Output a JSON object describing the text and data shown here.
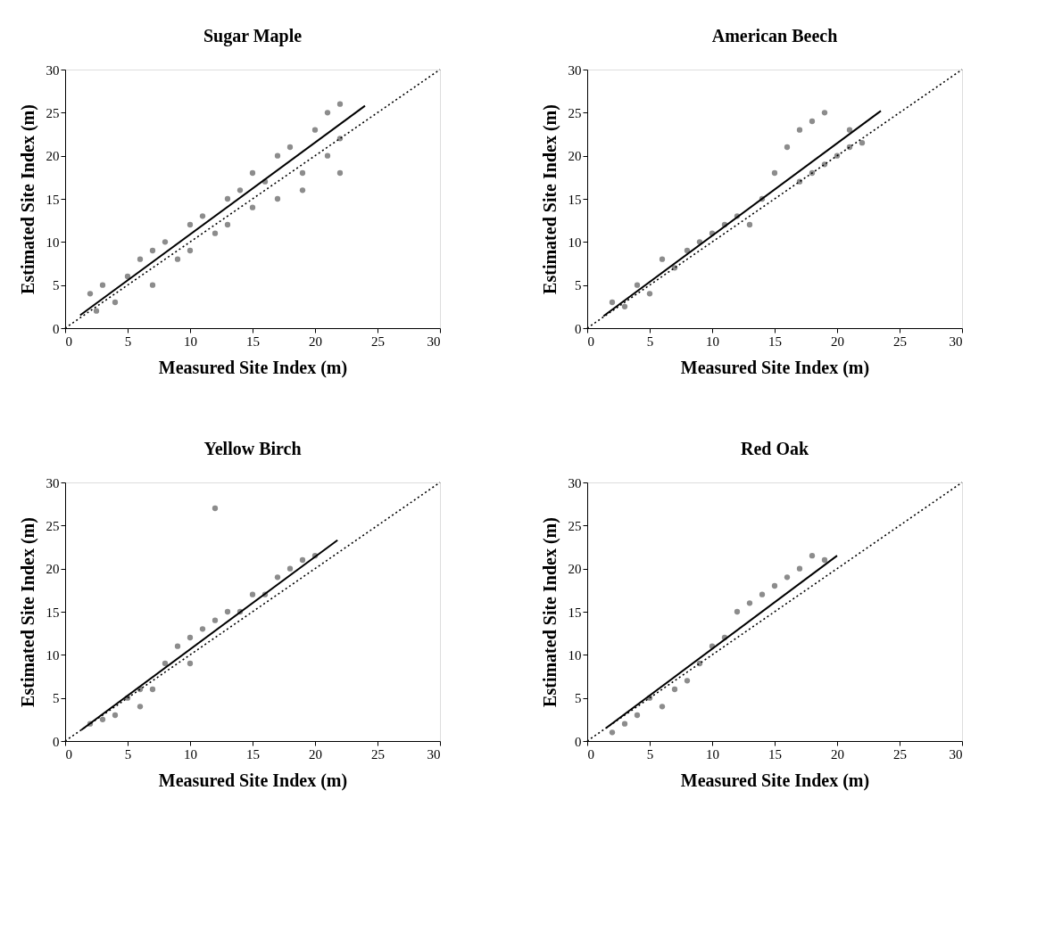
{
  "chart_data": [
    {
      "type": "scatter",
      "title": "Sugar Maple",
      "xlabel": "Measured Site Index (m)",
      "ylabel": "Estimated Site Index (m)",
      "xlim": [
        0,
        30
      ],
      "ylim": [
        0,
        30
      ],
      "xticks": [
        0,
        5,
        10,
        15,
        20,
        25,
        30
      ],
      "yticks": [
        0,
        5,
        10,
        15,
        20,
        25,
        30
      ],
      "grid": false,
      "series": [
        {
          "color": "#8c8c8c",
          "marker": "circle",
          "x": [
            2,
            2.5,
            3,
            4,
            5,
            6,
            7,
            7,
            8,
            9,
            10,
            10,
            11,
            12,
            13,
            13,
            14,
            15,
            15,
            16,
            17,
            17,
            18,
            19,
            20,
            21,
            22,
            22,
            22,
            21,
            19
          ],
          "values": [
            4,
            2,
            5,
            3,
            6,
            8,
            5,
            9,
            10,
            8,
            12,
            9,
            13,
            11,
            15,
            12,
            16,
            14,
            18,
            17,
            20,
            15,
            21,
            18,
            23,
            20,
            26,
            18,
            22,
            25,
            16
          ]
        },
        {
          "type": "line",
          "color": "#000000",
          "line_style": "solid",
          "x": [
            1.2,
            24
          ],
          "values": [
            1.5,
            25.8
          ]
        },
        {
          "type": "line",
          "color": "#000000",
          "line_style": "dotted",
          "x": [
            0,
            30
          ],
          "values": [
            0,
            30
          ]
        }
      ]
    },
    {
      "type": "scatter",
      "title": "American Beech",
      "xlabel": "Measured Site Index (m)",
      "ylabel": "Estimated Site Index (m)",
      "xlim": [
        0,
        30
      ],
      "ylim": [
        0,
        30
      ],
      "xticks": [
        0,
        5,
        10,
        15,
        20,
        25,
        30
      ],
      "yticks": [
        0,
        5,
        10,
        15,
        20,
        25,
        30
      ],
      "grid": false,
      "series": [
        {
          "color": "#8c8c8c",
          "marker": "circle",
          "x": [
            2,
            3,
            4,
            5,
            6,
            7,
            8,
            9,
            10,
            11,
            12,
            13,
            14,
            15,
            16,
            17,
            18,
            19,
            17,
            18,
            19,
            20,
            21,
            22,
            21
          ],
          "values": [
            3,
            2.5,
            5,
            4,
            8,
            7,
            9,
            10,
            11,
            12,
            13,
            12,
            15,
            18,
            21,
            23,
            24,
            25,
            17,
            18,
            19,
            20,
            21,
            21.5,
            23
          ]
        },
        {
          "type": "line",
          "color": "#000000",
          "line_style": "solid",
          "x": [
            1.3,
            23.5
          ],
          "values": [
            1.4,
            25.2
          ]
        },
        {
          "type": "line",
          "color": "#000000",
          "line_style": "dotted",
          "x": [
            0,
            30
          ],
          "values": [
            0,
            30
          ]
        }
      ]
    },
    {
      "type": "scatter",
      "title": "Yellow Birch",
      "xlabel": "Measured Site Index (m)",
      "ylabel": "Estimated Site Index (m)",
      "xlim": [
        0,
        30
      ],
      "ylim": [
        0,
        30
      ],
      "xticks": [
        0,
        5,
        10,
        15,
        20,
        25,
        30
      ],
      "yticks": [
        0,
        5,
        10,
        15,
        20,
        25,
        30
      ],
      "grid": false,
      "series": [
        {
          "color": "#8c8c8c",
          "marker": "circle",
          "x": [
            2,
            3,
            4,
            5,
            6,
            6,
            7,
            8,
            9,
            10,
            10,
            11,
            12,
            12,
            13,
            14,
            15,
            16,
            17,
            18,
            19,
            20
          ],
          "values": [
            2,
            2.5,
            3,
            5,
            6,
            4,
            6,
            9,
            11,
            12,
            9,
            13,
            14,
            27,
            15,
            15,
            17,
            17,
            19,
            20,
            21,
            21.5
          ]
        },
        {
          "type": "line",
          "color": "#000000",
          "line_style": "solid",
          "x": [
            1.3,
            21.8
          ],
          "values": [
            1.3,
            23.3
          ]
        },
        {
          "type": "line",
          "color": "#000000",
          "line_style": "dotted",
          "x": [
            0,
            30
          ],
          "values": [
            0,
            30
          ]
        }
      ]
    },
    {
      "type": "scatter",
      "title": "Red Oak",
      "xlabel": "Measured Site Index (m)",
      "ylabel": "Estimated Site Index (m)",
      "xlim": [
        0,
        30
      ],
      "ylim": [
        0,
        30
      ],
      "xticks": [
        0,
        5,
        10,
        15,
        20,
        25,
        30
      ],
      "yticks": [
        0,
        5,
        10,
        15,
        20,
        25,
        30
      ],
      "grid": false,
      "series": [
        {
          "color": "#8c8c8c",
          "marker": "circle",
          "x": [
            2,
            3,
            4,
            5,
            6,
            7,
            8,
            9,
            10,
            11,
            12,
            13,
            14,
            15,
            16,
            17,
            18,
            19
          ],
          "values": [
            1,
            2,
            3,
            5,
            4,
            6,
            7,
            9,
            11,
            12,
            15,
            16,
            17,
            18,
            19,
            20,
            21.5,
            21
          ]
        },
        {
          "type": "line",
          "color": "#000000",
          "line_style": "solid",
          "x": [
            1.5,
            20
          ],
          "values": [
            1.5,
            21.5
          ]
        },
        {
          "type": "line",
          "color": "#000000",
          "line_style": "dotted",
          "x": [
            0,
            30
          ],
          "values": [
            0,
            30
          ]
        }
      ]
    }
  ]
}
